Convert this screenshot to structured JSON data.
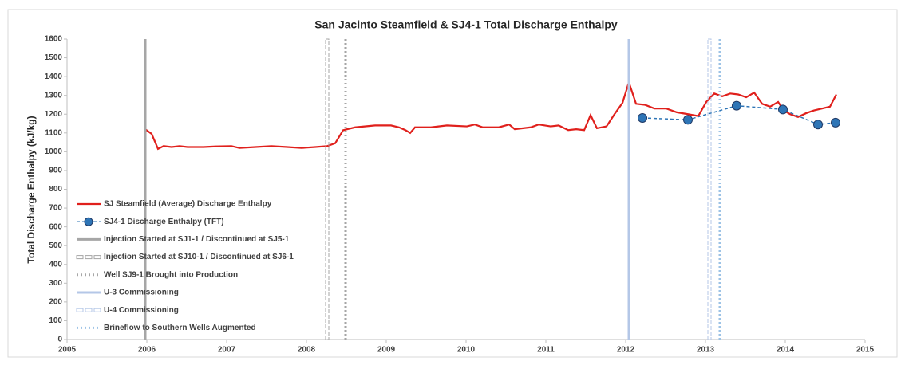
{
  "chart_data": {
    "type": "line",
    "title": "San Jacinto Steamfield & SJ4-1 Total Discharge Enthalpy",
    "y_label": "Total Discharge Enthalpy (kJ/kg)",
    "xlim": [
      2005,
      2015
    ],
    "xticks": [
      2005,
      2006,
      2007,
      2008,
      2009,
      2010,
      2011,
      2012,
      2013,
      2014,
      2015
    ],
    "ylim": [
      0,
      1600
    ],
    "yticks": [
      0,
      100,
      200,
      300,
      400,
      500,
      600,
      700,
      800,
      900,
      1000,
      1100,
      1200,
      1300,
      1400,
      1500,
      1600
    ],
    "grid": false,
    "legend": "lower left",
    "series": [
      {
        "name": "SJ Steamfield (Average) Discharge Enthalpy",
        "color": "#e0201c",
        "style": "solid",
        "x": [
          2005.98,
          2006.06,
          2006.14,
          2006.21,
          2006.31,
          2006.41,
          2006.51,
          2006.71,
          2006.86,
          2007.06,
          2007.16,
          2007.36,
          2007.56,
          2007.76,
          2007.94,
          2008.11,
          2008.26,
          2008.36,
          2008.46,
          2008.61,
          2008.86,
          2009.06,
          2009.16,
          2009.24,
          2009.3,
          2009.36,
          2009.56,
          2009.76,
          2010.01,
          2010.11,
          2010.21,
          2010.41,
          2010.54,
          2010.61,
          2010.81,
          2010.91,
          2011.06,
          2011.16,
          2011.28,
          2011.38,
          2011.48,
          2011.56,
          2011.64,
          2011.76,
          2011.86,
          2011.96,
          2012.04,
          2012.13,
          2012.24,
          2012.36,
          2012.51,
          2012.64,
          2012.78,
          2012.91,
          2013.01,
          2013.11,
          2013.21,
          2013.31,
          2013.41,
          2013.51,
          2013.61,
          2013.71,
          2013.81,
          2013.91,
          2013.98,
          2014.06,
          2014.16,
          2014.26,
          2014.36,
          2014.46,
          2014.56,
          2014.64
        ],
        "values": [
          1120,
          1095,
          1015,
          1030,
          1025,
          1030,
          1025,
          1025,
          1028,
          1030,
          1020,
          1025,
          1030,
          1025,
          1020,
          1025,
          1030,
          1045,
          1115,
          1130,
          1140,
          1140,
          1130,
          1115,
          1100,
          1130,
          1130,
          1140,
          1135,
          1145,
          1130,
          1130,
          1145,
          1120,
          1130,
          1145,
          1135,
          1140,
          1115,
          1120,
          1115,
          1195,
          1125,
          1135,
          1200,
          1260,
          1370,
          1255,
          1250,
          1230,
          1230,
          1210,
          1200,
          1190,
          1265,
          1310,
          1295,
          1310,
          1305,
          1290,
          1315,
          1255,
          1240,
          1265,
          1220,
          1200,
          1185,
          1205,
          1220,
          1230,
          1240,
          1305
        ]
      },
      {
        "name": "SJ4-1 Discharge Enthalpy (TFT)",
        "color": "#2e75b6",
        "style": "dashed-marker",
        "x": [
          2012.21,
          2012.78,
          2013.39,
          2013.97,
          2014.41,
          2014.63
        ],
        "values": [
          1180,
          1170,
          1245,
          1225,
          1145,
          1155
        ]
      },
      {
        "name": "Injection Started at SJ1-1 / Discontinued at SJ5-1",
        "color": "#a6a6a6",
        "style": "solid",
        "x": 2005.98
      },
      {
        "name": "Injection Started at SJ10-1 / Discontinued at SJ6-1",
        "color": "#a6a6a6",
        "style": "box",
        "x": 2008.26
      },
      {
        "name": "Well SJ9-1 Brought into Production",
        "color": "#a6a6a6",
        "style": "dotted",
        "x": 2008.49
      },
      {
        "name": "U-3 Commissioning",
        "color": "#b4c7e7",
        "style": "solid",
        "x": 2012.04
      },
      {
        "name": "U-4 Commissioning",
        "color": "#b4c7e7",
        "style": "box",
        "x": 2013.05
      },
      {
        "name": "Brineflow to Southern Wells Augmented",
        "color": "#9dc3e6",
        "style": "dotted",
        "x": 2013.18
      }
    ]
  }
}
